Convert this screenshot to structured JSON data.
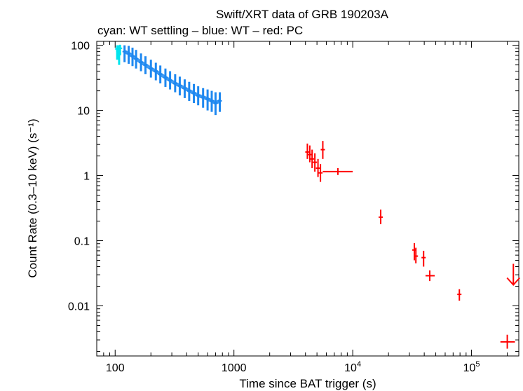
{
  "chart_data": {
    "type": "scatter",
    "title": "Swift/XRT data of GRB 190203A",
    "subtitle": "cyan: WT settling – blue: WT – red: PC",
    "xlabel": "Time since BAT trigger (s)",
    "ylabel": "Count Rate (0.3–10 keV) (s⁻¹)",
    "xscale": "log",
    "yscale": "log",
    "xlim": [
      70,
      250000
    ],
    "ylim": [
      0.0017,
      115
    ],
    "grid": false,
    "x_ticks": [
      {
        "value": 100,
        "label": "100"
      },
      {
        "value": 1000,
        "label": "1000"
      },
      {
        "value": 10000,
        "label": "10",
        "sup": "4"
      },
      {
        "value": 100000,
        "label": "10",
        "sup": "5"
      }
    ],
    "y_ticks": [
      {
        "value": 100,
        "label": "100"
      },
      {
        "value": 10,
        "label": "10"
      },
      {
        "value": 1,
        "label": "1"
      },
      {
        "value": 0.1,
        "label": "0.1"
      },
      {
        "value": 0.01,
        "label": "0.01"
      }
    ],
    "series": [
      {
        "color": "#00e5ee",
        "points": [
          {
            "x": 104,
            "y": 88,
            "ylo": 60,
            "yhi": 100
          },
          {
            "x": 106,
            "y": 82,
            "ylo": 62,
            "yhi": 100
          },
          {
            "x": 108,
            "y": 75,
            "ylo": 50,
            "yhi": 98
          },
          {
            "x": 110,
            "y": 90,
            "ylo": 70,
            "yhi": 102
          }
        ]
      },
      {
        "color": "#1e88f0",
        "points": [
          {
            "x": 120,
            "y": 80,
            "ylo": 55,
            "yhi": 100
          },
          {
            "x": 130,
            "y": 75,
            "ylo": 52,
            "yhi": 98
          },
          {
            "x": 140,
            "y": 68,
            "ylo": 48,
            "yhi": 92
          },
          {
            "x": 150,
            "y": 62,
            "ylo": 44,
            "yhi": 85
          },
          {
            "x": 165,
            "y": 55,
            "ylo": 40,
            "yhi": 75
          },
          {
            "x": 180,
            "y": 50,
            "ylo": 36,
            "yhi": 68
          },
          {
            "x": 200,
            "y": 44,
            "ylo": 32,
            "yhi": 60
          },
          {
            "x": 220,
            "y": 40,
            "ylo": 29,
            "yhi": 54
          },
          {
            "x": 240,
            "y": 36,
            "ylo": 26,
            "yhi": 49
          },
          {
            "x": 265,
            "y": 32,
            "ylo": 23,
            "yhi": 44
          },
          {
            "x": 290,
            "y": 29,
            "ylo": 21,
            "yhi": 40
          },
          {
            "x": 320,
            "y": 26,
            "ylo": 19,
            "yhi": 36
          },
          {
            "x": 350,
            "y": 24,
            "ylo": 17,
            "yhi": 33
          },
          {
            "x": 385,
            "y": 22,
            "ylo": 15.5,
            "yhi": 30
          },
          {
            "x": 420,
            "y": 20,
            "ylo": 14,
            "yhi": 27.5
          },
          {
            "x": 460,
            "y": 18.5,
            "ylo": 13,
            "yhi": 25.5
          },
          {
            "x": 500,
            "y": 17,
            "ylo": 12,
            "yhi": 23.5
          },
          {
            "x": 550,
            "y": 16,
            "ylo": 11,
            "yhi": 22
          },
          {
            "x": 600,
            "y": 15,
            "ylo": 10,
            "yhi": 21
          },
          {
            "x": 650,
            "y": 14,
            "ylo": 9.5,
            "yhi": 20
          },
          {
            "x": 700,
            "y": 13,
            "ylo": 8.5,
            "yhi": 19
          },
          {
            "x": 760,
            "y": 14,
            "ylo": 9.5,
            "yhi": 19
          }
        ]
      },
      {
        "color": "#ff0000",
        "points": [
          {
            "x": 4150,
            "y": 2.3,
            "ylo": 1.8,
            "yhi": 3.1
          },
          {
            "x": 4350,
            "y": 2.1,
            "ylo": 1.6,
            "yhi": 2.9
          },
          {
            "x": 4550,
            "y": 1.8,
            "ylo": 1.3,
            "yhi": 2.5
          },
          {
            "x": 4800,
            "y": 1.6,
            "ylo": 1.15,
            "yhi": 2.2
          },
          {
            "x": 5100,
            "y": 1.3,
            "ylo": 0.95,
            "yhi": 1.8
          },
          {
            "x": 5350,
            "y": 1.1,
            "ylo": 0.8,
            "yhi": 1.5
          },
          {
            "x": 5600,
            "y": 2.5,
            "ylo": 1.8,
            "yhi": 3.4
          },
          {
            "x": 7500,
            "y": 1.15,
            "ylo": 1.02,
            "yhi": 1.3,
            "xlo": 5600,
            "xhi": 10000
          },
          {
            "x": 17200,
            "y": 0.23,
            "ylo": 0.18,
            "yhi": 0.3
          },
          {
            "x": 33000,
            "y": 0.072,
            "ylo": 0.05,
            "yhi": 0.092
          },
          {
            "x": 34000,
            "y": 0.058,
            "ylo": 0.045,
            "yhi": 0.078
          },
          {
            "x": 39500,
            "y": 0.055,
            "ylo": 0.04,
            "yhi": 0.07
          },
          {
            "x": 44500,
            "y": 0.029,
            "ylo": 0.024,
            "yhi": 0.035,
            "xlo": 41000,
            "xhi": 49000
          },
          {
            "x": 79000,
            "y": 0.015,
            "ylo": 0.012,
            "yhi": 0.018
          },
          {
            "x": 200000,
            "y": 0.0028,
            "ylo": 0.0022,
            "yhi": 0.0036,
            "xlo": 175000,
            "xhi": 232000
          }
        ]
      }
    ],
    "upper_limits": [
      {
        "x": 225000,
        "y": 0.021,
        "color": "#ff0000"
      }
    ]
  }
}
